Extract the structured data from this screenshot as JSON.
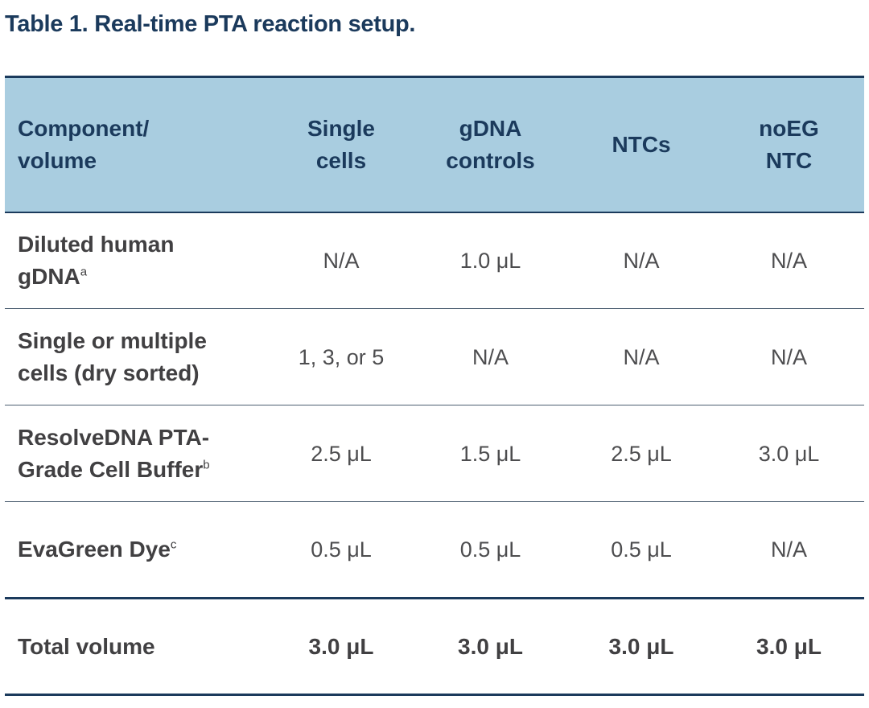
{
  "title": "Table 1. Real-time PTA reaction setup.",
  "table": {
    "headers": [
      {
        "line1": "Component/",
        "line2": "volume"
      },
      {
        "line1": "Single",
        "line2": "cells"
      },
      {
        "line1": "gDNA",
        "line2": "controls"
      },
      {
        "line1": "NTCs",
        "line2": ""
      },
      {
        "line1": "noEG",
        "line2": "NTC"
      }
    ],
    "rows": [
      {
        "label1": "Diluted human",
        "label2": "gDNA",
        "sup": "a",
        "values": [
          "N/A",
          "1.0 μL",
          "N/A",
          "N/A"
        ]
      },
      {
        "label1": "Single or multiple",
        "label2": "cells (dry sorted)",
        "sup": "",
        "values": [
          "1, 3, or 5",
          "N/A",
          "N/A",
          "N/A"
        ]
      },
      {
        "label1": "ResolveDNA PTA-",
        "label2": "Grade Cell Buffer",
        "sup": "b",
        "values": [
          "2.5 μL",
          "1.5 μL",
          "2.5 μL",
          "3.0 μL"
        ]
      },
      {
        "label1": "EvaGreen Dye",
        "label2": "",
        "sup": "c",
        "values": [
          "0.5 μL",
          "0.5 μL",
          "0.5 μL",
          "N/A"
        ]
      }
    ],
    "total": {
      "label": "Total volume",
      "values": [
        "3.0 μL",
        "3.0 μL",
        "3.0 μL",
        "3.0 μL"
      ]
    }
  }
}
